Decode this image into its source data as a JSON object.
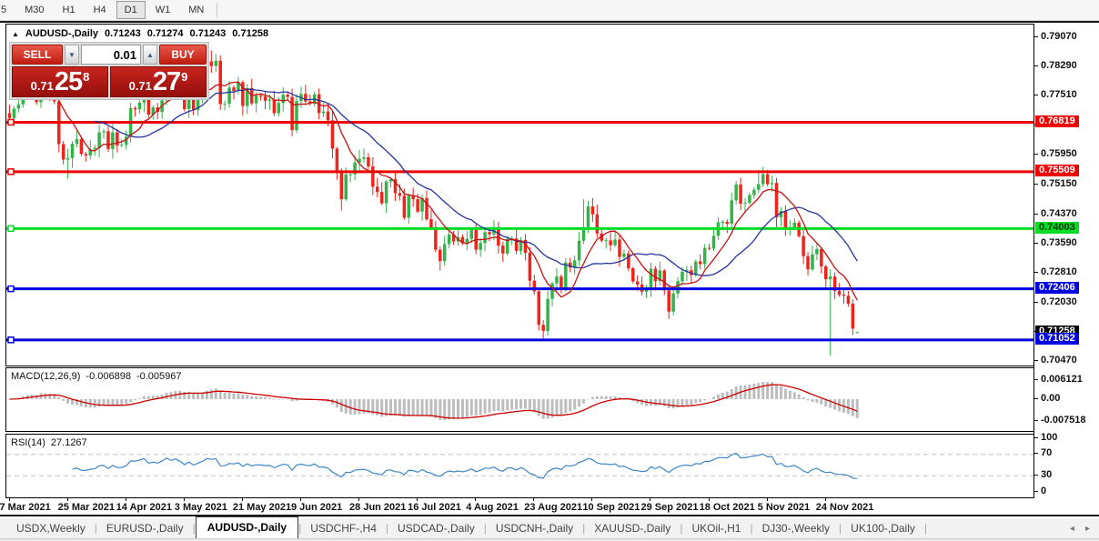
{
  "toolbar": {
    "timeframes": [
      {
        "label": "5",
        "active": false
      },
      {
        "label": "M30",
        "active": false
      },
      {
        "label": "H1",
        "active": false
      },
      {
        "label": "H4",
        "active": false
      },
      {
        "label": "D1",
        "active": true
      },
      {
        "label": "W1",
        "active": false
      },
      {
        "label": "MN",
        "active": false
      }
    ]
  },
  "chart": {
    "title_symbol": "AUDUSD-,Daily",
    "ohlc": {
      "open": "0.71243",
      "high": "0.71274",
      "low": "0.71243",
      "close": "0.71258"
    },
    "trade_widget": {
      "sell_label": "SELL",
      "buy_label": "BUY",
      "volume": "0.01",
      "bid": {
        "prefix": "0.71",
        "big": "25",
        "sup": "8"
      },
      "ask": {
        "prefix": "0.71",
        "big": "27",
        "sup": "9"
      }
    }
  },
  "price_axis": {
    "ticks": [
      "0.79070",
      "0.78290",
      "0.77510",
      "0.76730",
      "0.75950",
      "0.75150",
      "0.74370",
      "0.73590",
      "0.72810",
      "0.72030",
      "0.71250",
      "0.70470"
    ]
  },
  "levels": [
    {
      "price": 0.76819,
      "label": "0.76819",
      "color": "#f00000",
      "text": "#ffffff"
    },
    {
      "price": 0.75509,
      "label": "0.75509",
      "color": "#f00000",
      "text": "#ffffff"
    },
    {
      "price": 0.74003,
      "label": "0.74003",
      "color": "#00dd22",
      "text": "#003300"
    },
    {
      "price": 0.72406,
      "label": "0.72406",
      "color": "#0000e0",
      "text": "#ffffff"
    },
    {
      "price": 0.71052,
      "label": "0.71052",
      "color": "#0000e0",
      "text": "#ffffff"
    }
  ],
  "current_price": {
    "value": 0.71258,
    "label": "0.71258",
    "bg": "#000000",
    "text": "#ffffff"
  },
  "chart_data": {
    "type": "candlestick",
    "symbol": "AUDUSD",
    "timeframe": "Daily",
    "title": "AUDUSD-,Daily",
    "x_labels": [
      "7 Mar 2021",
      "25 Mar 2021",
      "14 Apr 2021",
      "3 May 2021",
      "21 May 2021",
      "9 Jun 2021",
      "28 Jun 2021",
      "16 Jul 2021",
      "4 Aug 2021",
      "23 Aug 2021",
      "10 Sep 2021",
      "29 Sep 2021",
      "18 Oct 2021",
      "5 Nov 2021",
      "24 Nov 2021"
    ],
    "label_every": 13,
    "ylim": [
      0.7047,
      0.7907
    ],
    "first_open": 0.7706,
    "closes": [
      0.7693,
      0.7718,
      0.7729,
      0.7784,
      0.776,
      0.7755,
      0.7735,
      0.78,
      0.776,
      0.7745,
      0.7737,
      0.7624,
      0.7583,
      0.7587,
      0.7625,
      0.7637,
      0.7598,
      0.7594,
      0.761,
      0.7614,
      0.7655,
      0.7658,
      0.7611,
      0.7655,
      0.762,
      0.7622,
      0.7644,
      0.7719,
      0.7716,
      0.7734,
      0.7763,
      0.7702,
      0.7721,
      0.7709,
      0.774,
      0.7797,
      0.7767,
      0.7795,
      0.7766,
      0.7717,
      0.7762,
      0.7714,
      0.7747,
      0.7782,
      0.7843,
      0.7831,
      0.7845,
      0.773,
      0.7731,
      0.7774,
      0.7765,
      0.7788,
      0.7725,
      0.7772,
      0.7732,
      0.7753,
      0.775,
      0.7739,
      0.7742,
      0.7706,
      0.7733,
      0.7755,
      0.7749,
      0.7661,
      0.7738,
      0.7757,
      0.7737,
      0.7731,
      0.7756,
      0.7706,
      0.771,
      0.7687,
      0.7612,
      0.7553,
      0.7478,
      0.7543,
      0.7544,
      0.7575,
      0.7585,
      0.7589,
      0.7565,
      0.7511,
      0.7497,
      0.7467,
      0.7525,
      0.7531,
      0.7494,
      0.7487,
      0.7429,
      0.7488,
      0.7478,
      0.7445,
      0.7481,
      0.7425,
      0.7402,
      0.7344,
      0.7314,
      0.7359,
      0.7385,
      0.7366,
      0.7378,
      0.7361,
      0.7373,
      0.7398,
      0.7344,
      0.7362,
      0.7391,
      0.7385,
      0.7402,
      0.7355,
      0.7334,
      0.7373,
      0.7374,
      0.7341,
      0.737,
      0.7336,
      0.7262,
      0.7234,
      0.7145,
      0.7129,
      0.7214,
      0.7255,
      0.7273,
      0.7238,
      0.731,
      0.7297,
      0.7316,
      0.7368,
      0.74,
      0.7459,
      0.7438,
      0.7387,
      0.7368,
      0.7369,
      0.7356,
      0.7371,
      0.7325,
      0.7334,
      0.7295,
      0.726,
      0.7252,
      0.7233,
      0.724,
      0.7294,
      0.7261,
      0.7289,
      0.7236,
      0.718,
      0.7228,
      0.7261,
      0.7286,
      0.729,
      0.7277,
      0.7313,
      0.7306,
      0.7349,
      0.7347,
      0.7381,
      0.7417,
      0.7418,
      0.7413,
      0.7475,
      0.7517,
      0.7466,
      0.7468,
      0.7489,
      0.7503,
      0.7518,
      0.7544,
      0.7518,
      0.7521,
      0.743,
      0.7447,
      0.74,
      0.7402,
      0.7416,
      0.738,
      0.7327,
      0.7292,
      0.7332,
      0.7346,
      0.73,
      0.7266,
      0.7273,
      0.7235,
      0.7225,
      0.7222,
      0.7201,
      0.7135,
      0.71258
    ],
    "wick_overrides": {
      "7": [
        0.7838,
        null
      ],
      "13": [
        null,
        0.7532
      ],
      "45": [
        0.7872,
        null
      ],
      "63": [
        null,
        0.7645
      ],
      "74": [
        null,
        0.7448
      ],
      "96": [
        null,
        0.7289
      ],
      "118": [
        null,
        0.713
      ],
      "119": [
        null,
        0.7106
      ],
      "128": [
        0.7478,
        null
      ],
      "148": [
        null,
        0.717
      ],
      "167": [
        0.7556,
        null
      ],
      "183": [
        null,
        0.7063
      ]
    },
    "last_candle": {
      "open": 0.71243,
      "high": 0.71274,
      "low": 0.71243,
      "close": 0.71258
    },
    "indicators": {
      "ma_fast_period": 8,
      "ma_slow_period": 20,
      "macd": {
        "fast": 12,
        "slow": 26,
        "signal": 9
      },
      "rsi_period": 14
    },
    "macd_readout": {
      "label": "MACD(12,26,9)",
      "main": "-0.006898",
      "signal": "-0.005967",
      "scale": [
        "0.006121",
        "0.00",
        "-0.007518"
      ]
    },
    "rsi_readout": {
      "label": "RSI(14)",
      "value": "27.1267",
      "scale": [
        "100",
        "70",
        "30",
        "0"
      ],
      "level_lines": [
        70,
        30
      ]
    }
  },
  "tabs": {
    "items": [
      {
        "label": "USDX,Weekly",
        "active": false
      },
      {
        "label": "EURUSD-,Daily",
        "active": false
      },
      {
        "label": "AUDUSD-,Daily",
        "active": true
      },
      {
        "label": "USDCHF-,H4",
        "active": false
      },
      {
        "label": "USDCAD-,Daily",
        "active": false
      },
      {
        "label": "USDCNH-,Daily",
        "active": false
      },
      {
        "label": "XAUUSD-,Daily",
        "active": false
      },
      {
        "label": "UKOil-,H1",
        "active": false
      },
      {
        "label": "DJ30-,Weekly",
        "active": false
      },
      {
        "label": "UK100-,Daily",
        "active": false
      }
    ]
  },
  "colors": {
    "candle_up": "#33b34a",
    "candle_down": "#f1231a",
    "ma_fast": "#c81111",
    "ma_slow": "#24349e",
    "macd_hist": "#bdbdbd",
    "macd_signal": "#cc0000",
    "rsi_line": "#3d85c8",
    "rsi_levels": "#c0c0c0"
  }
}
